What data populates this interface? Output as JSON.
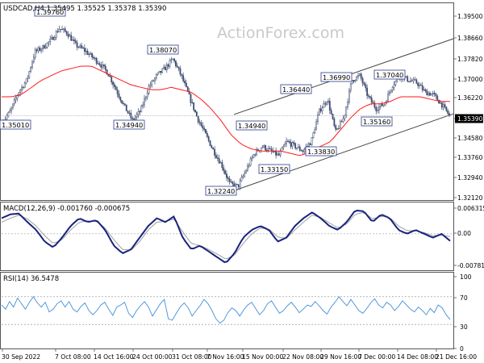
{
  "chart_data": [
    {
      "type": "candlestick",
      "title": "USDCAD,H4  1.35495 1.35525 1.35378 1.35390",
      "symbol": "USDCAD",
      "timeframe": "H4",
      "quote": {
        "open": 1.35495,
        "high": 1.35525,
        "low": 1.35378,
        "close": 1.3539
      },
      "current_price_label": "1.35390",
      "yaxis_ticks": [
        "1.39500",
        "1.38660",
        "1.37820",
        "1.37000",
        "1.36220",
        "1.35390",
        "1.34580",
        "1.33760",
        "1.32940",
        "1.32120"
      ],
      "ylim": [
        1.3196,
        1.3996
      ],
      "xaxis_ticks": [
        "30 Sep 2022",
        "7 Oct 08:00",
        "14 Oct 16:00",
        "24 Oct 00:00",
        "31 Oct 08:00",
        "7 Nov 16:00",
        "15 Nov 00:00",
        "22 Nov 08:00",
        "29 Nov 16:00",
        "7 Dec 00:00",
        "14 Dec 08:00",
        "21 Dec 16:00"
      ],
      "close_series": [
        1.351,
        1.356,
        1.364,
        1.369,
        1.381,
        1.383,
        1.386,
        1.391,
        1.389,
        1.384,
        1.382,
        1.379,
        1.376,
        1.372,
        1.365,
        1.358,
        1.352,
        1.356,
        1.366,
        1.371,
        1.374,
        1.378,
        1.371,
        1.362,
        1.353,
        1.346,
        1.339,
        1.333,
        1.325,
        1.324,
        1.331,
        1.338,
        1.341,
        1.339,
        1.337,
        1.343,
        1.341,
        1.339,
        1.343,
        1.356,
        1.361,
        1.347,
        1.353,
        1.369,
        1.371,
        1.362,
        1.357,
        1.359,
        1.367,
        1.371,
        1.369,
        1.368,
        1.364,
        1.363,
        1.359,
        1.354
      ],
      "ma_series": [
        1.362,
        1.362,
        1.363,
        1.366,
        1.369,
        1.371,
        1.373,
        1.374,
        1.375,
        1.375,
        1.373,
        1.371,
        1.369,
        1.367,
        1.366,
        1.365,
        1.365,
        1.366,
        1.365,
        1.364,
        1.361,
        1.357,
        1.352,
        1.346,
        1.342,
        1.34,
        1.339,
        1.339,
        1.339,
        1.338,
        1.337,
        1.339,
        1.341,
        1.343,
        1.348,
        1.353,
        1.357,
        1.359,
        1.359,
        1.36,
        1.362,
        1.362,
        1.362,
        1.361,
        1.36,
        1.36
      ],
      "price_labels": [
        {
          "label": "1.39760",
          "value": 1.3976
        },
        {
          "label": "1.38070",
          "value": 1.3807
        },
        {
          "label": "1.35010",
          "value": 1.3501
        },
        {
          "label": "1.34940",
          "value": 1.3494
        },
        {
          "label": "1.32240",
          "value": 1.3224
        },
        {
          "label": "1.34940",
          "value": 1.3494
        },
        {
          "label": "1.33150",
          "value": 1.3315
        },
        {
          "label": "1.36440",
          "value": 1.3644
        },
        {
          "label": "1.33830",
          "value": 1.3383
        },
        {
          "label": "1.36990",
          "value": 1.3699
        },
        {
          "label": "1.37040",
          "value": 1.3704
        },
        {
          "label": "1.35160",
          "value": 1.3516
        }
      ],
      "channel": {
        "upper": [
          1.3545,
          1.3866
        ],
        "lower": [
          1.3222,
          1.3548
        ]
      },
      "colors": {
        "candles": "#3d4a6e",
        "ma": "#ff1a1a",
        "channel": "#444444",
        "label_border": "#2b3a87"
      }
    },
    {
      "type": "line",
      "title": "MACD(12,26,9) -0.001760 -0.000675",
      "yaxis_ticks": [
        "0.006315",
        "0.00",
        "-0.007818"
      ],
      "ylim": [
        -0.0085,
        0.007
      ],
      "series": [
        {
          "name": "MACD",
          "values": [
            0.004,
            0.005,
            0.0052,
            0.003,
            0.001,
            -0.002,
            -0.0035,
            -0.001,
            0.002,
            0.004,
            0.003,
            0.0035,
            0.001,
            -0.003,
            -0.005,
            -0.004,
            -0.001,
            0.002,
            0.004,
            0.003,
            0.0045,
            -0.001,
            -0.004,
            -0.003,
            -0.0045,
            -0.006,
            -0.0075,
            -0.005,
            -0.001,
            0.001,
            0.002,
            0.001,
            -0.002,
            -0.001,
            0.002,
            0.004,
            0.0055,
            0.004,
            0.002,
            0.001,
            0.003,
            0.006,
            0.0058,
            0.003,
            0.005,
            0.004,
            0.001,
            0.0,
            0.001,
            0.0,
            -0.001,
            0.0,
            -0.0018
          ]
        },
        {
          "name": "Signal",
          "values": [
            0.003,
            0.004,
            0.0048,
            0.0038,
            0.002,
            -0.0005,
            -0.0025,
            -0.0015,
            0.001,
            0.003,
            0.0033,
            0.0032,
            0.0015,
            -0.0015,
            -0.004,
            -0.0042,
            -0.002,
            0.001,
            0.003,
            0.0032,
            0.0038,
            0.0005,
            -0.0025,
            -0.003,
            -0.004,
            -0.0052,
            -0.0065,
            -0.0055,
            -0.0025,
            0.0,
            0.0015,
            0.0012,
            -0.0008,
            -0.0012,
            0.001,
            0.003,
            0.0048,
            0.0042,
            0.0028,
            0.0015,
            0.0025,
            0.005,
            0.0055,
            0.0038,
            0.0045,
            0.0042,
            0.002,
            0.0008,
            0.0008,
            0.0003,
            -0.0005,
            -0.0003,
            -0.0007
          ]
        }
      ],
      "colors": {
        "macd": "#1a237e",
        "signal": "#9e9e9e"
      }
    },
    {
      "type": "line",
      "title": "RSI(14) 36.5478",
      "yaxis_ticks": [
        "100",
        "70",
        "30",
        "0"
      ],
      "ylim": [
        0,
        100
      ],
      "levels": [
        70,
        30
      ],
      "series": [
        {
          "name": "RSI",
          "values": [
            58,
            52,
            63,
            55,
            68,
            60,
            52,
            62,
            70,
            61,
            55,
            62,
            48,
            52,
            60,
            64,
            55,
            63,
            52,
            48,
            56,
            61,
            50,
            44,
            50,
            58,
            62,
            52,
            43,
            55,
            58,
            62,
            46,
            40,
            50,
            57,
            63,
            55,
            42,
            51,
            60,
            66,
            38,
            36,
            46,
            55,
            61,
            54,
            42,
            50,
            57,
            66,
            60,
            50,
            38,
            32,
            36,
            47,
            54,
            50,
            42,
            51,
            58,
            62,
            53,
            44,
            50,
            60,
            64,
            55,
            46,
            50,
            57,
            62,
            55,
            47,
            52,
            58,
            56,
            63,
            57,
            50,
            45,
            55,
            62,
            70,
            63,
            57,
            66,
            58,
            50,
            46,
            53,
            61,
            67,
            58,
            54,
            62,
            58,
            50,
            56,
            64,
            58,
            52,
            48,
            55,
            50,
            44,
            53,
            47,
            58,
            54,
            44,
            37
          ]
        }
      ],
      "colors": {
        "rsi": "#3f8fd8",
        "level": "#888888"
      }
    }
  ],
  "watermark": "ActionForex.com"
}
